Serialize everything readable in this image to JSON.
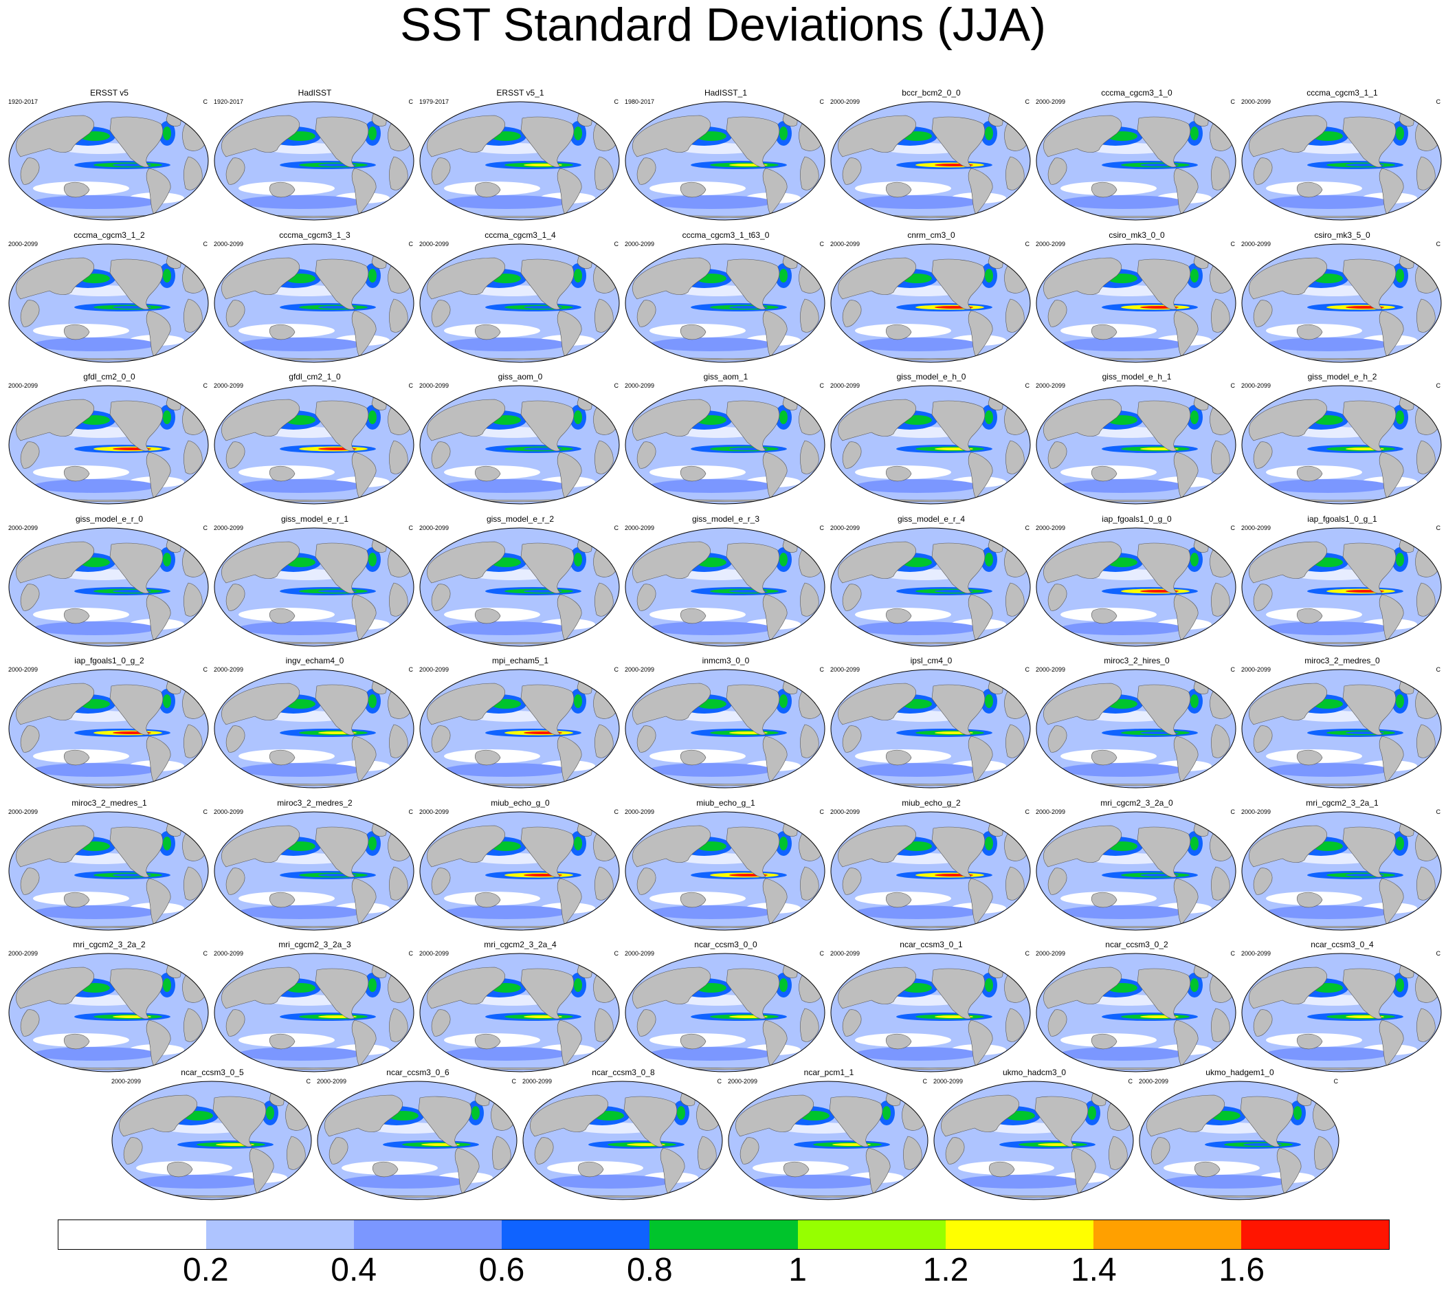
{
  "title": "SST Standard Deviations (JJA)",
  "units_label": "C",
  "colorbar": {
    "colors": [
      "#ffffff",
      "#aec4ff",
      "#7b97ff",
      "#0f63ff",
      "#00c42c",
      "#96ff00",
      "#ffff00",
      "#ffa000",
      "#ff1500"
    ],
    "labels": [
      "0.2",
      "0.4",
      "0.6",
      "0.8",
      "1",
      "1.2",
      "1.4",
      "1.6"
    ]
  },
  "panels": [
    {
      "name": "ERSST v5",
      "period": "1920-2017"
    },
    {
      "name": "HadISST",
      "period": "1920-2017"
    },
    {
      "name": "ERSST v5_1",
      "period": "1979-2017"
    },
    {
      "name": "HadISST_1",
      "period": "1980-2017"
    },
    {
      "name": "bccr_bcm2_0_0",
      "period": "2000-2099"
    },
    {
      "name": "cccma_cgcm3_1_0",
      "period": "2000-2099"
    },
    {
      "name": "cccma_cgcm3_1_1",
      "period": "2000-2099"
    },
    {
      "name": "cccma_cgcm3_1_2",
      "period": "2000-2099"
    },
    {
      "name": "cccma_cgcm3_1_3",
      "period": "2000-2099"
    },
    {
      "name": "cccma_cgcm3_1_4",
      "period": "2000-2099"
    },
    {
      "name": "cccma_cgcm3_1_t63_0",
      "period": "2000-2099"
    },
    {
      "name": "cnrm_cm3_0",
      "period": "2000-2099"
    },
    {
      "name": "csiro_mk3_0_0",
      "period": "2000-2099"
    },
    {
      "name": "csiro_mk3_5_0",
      "period": "2000-2099"
    },
    {
      "name": "gfdl_cm2_0_0",
      "period": "2000-2099"
    },
    {
      "name": "gfdl_cm2_1_0",
      "period": "2000-2099"
    },
    {
      "name": "giss_aom_0",
      "period": "2000-2099"
    },
    {
      "name": "giss_aom_1",
      "period": "2000-2099"
    },
    {
      "name": "giss_model_e_h_0",
      "period": "2000-2099"
    },
    {
      "name": "giss_model_e_h_1",
      "period": "2000-2099"
    },
    {
      "name": "giss_model_e_h_2",
      "period": "2000-2099"
    },
    {
      "name": "giss_model_e_r_0",
      "period": "2000-2099"
    },
    {
      "name": "giss_model_e_r_1",
      "period": "2000-2099"
    },
    {
      "name": "giss_model_e_r_2",
      "period": "2000-2099"
    },
    {
      "name": "giss_model_e_r_3",
      "period": "2000-2099"
    },
    {
      "name": "giss_model_e_r_4",
      "period": "2000-2099"
    },
    {
      "name": "iap_fgoals1_0_g_0",
      "period": "2000-2099"
    },
    {
      "name": "iap_fgoals1_0_g_1",
      "period": "2000-2099"
    },
    {
      "name": "iap_fgoals1_0_g_2",
      "period": "2000-2099"
    },
    {
      "name": "ingv_echam4_0",
      "period": "2000-2099"
    },
    {
      "name": "mpi_echam5_1",
      "period": "2000-2099"
    },
    {
      "name": "inmcm3_0_0",
      "period": "2000-2099"
    },
    {
      "name": "ipsl_cm4_0",
      "period": "2000-2099"
    },
    {
      "name": "miroc3_2_hires_0",
      "period": "2000-2099"
    },
    {
      "name": "miroc3_2_medres_0",
      "period": "2000-2099"
    },
    {
      "name": "miroc3_2_medres_1",
      "period": "2000-2099"
    },
    {
      "name": "miroc3_2_medres_2",
      "period": "2000-2099"
    },
    {
      "name": "miub_echo_g_0",
      "period": "2000-2099"
    },
    {
      "name": "miub_echo_g_1",
      "period": "2000-2099"
    },
    {
      "name": "miub_echo_g_2",
      "period": "2000-2099"
    },
    {
      "name": "mri_cgcm2_3_2a_0",
      "period": "2000-2099"
    },
    {
      "name": "mri_cgcm2_3_2a_1",
      "period": "2000-2099"
    },
    {
      "name": "mri_cgcm2_3_2a_2",
      "period": "2000-2099"
    },
    {
      "name": "mri_cgcm2_3_2a_3",
      "period": "2000-2099"
    },
    {
      "name": "mri_cgcm2_3_2a_4",
      "period": "2000-2099"
    },
    {
      "name": "ncar_ccsm3_0_0",
      "period": "2000-2099"
    },
    {
      "name": "ncar_ccsm3_0_1",
      "period": "2000-2099"
    },
    {
      "name": "ncar_ccsm3_0_2",
      "period": "2000-2099"
    },
    {
      "name": "ncar_ccsm3_0_4",
      "period": "2000-2099"
    },
    {
      "name": "ncar_ccsm3_0_5",
      "period": "2000-2099"
    },
    {
      "name": "ncar_ccsm3_0_6",
      "period": "2000-2099"
    },
    {
      "name": "ncar_ccsm3_0_8",
      "period": "2000-2099"
    },
    {
      "name": "ncar_pcm1_1",
      "period": "2000-2099"
    },
    {
      "name": "ukmo_hadcm3_0",
      "period": "2000-2099"
    },
    {
      "name": "ukmo_hadgem1_0",
      "period": "2000-2099"
    }
  ]
}
